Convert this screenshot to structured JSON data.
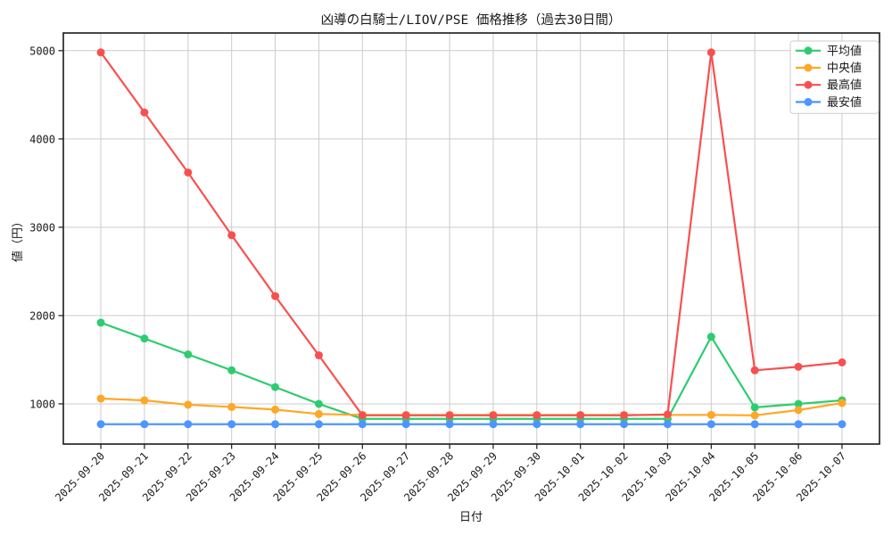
{
  "chart_data": {
    "type": "line",
    "title": "凶導の白騎士/LIOV/PSE 価格推移（過去30日間）",
    "xlabel": "日付",
    "ylabel": "値（円）",
    "x": [
      "2025-09-20",
      "2025-09-21",
      "2025-09-22",
      "2025-09-23",
      "2025-09-24",
      "2025-09-25",
      "2025-09-26",
      "2025-09-27",
      "2025-09-28",
      "2025-09-29",
      "2025-09-30",
      "2025-10-01",
      "2025-10-02",
      "2025-10-03",
      "2025-10-04",
      "2025-10-05",
      "2025-10-06",
      "2025-10-07"
    ],
    "yticks": [
      1000,
      2000,
      3000,
      4000,
      5000
    ],
    "ylim": [
      545,
      5200
    ],
    "grid": true,
    "legend_position": "upper right",
    "series": [
      {
        "name": "平均値",
        "key": "average",
        "color": "#2ecc71",
        "values": [
          1920,
          1740,
          1560,
          1380,
          1190,
          1000,
          830,
          830,
          830,
          830,
          830,
          830,
          830,
          830,
          1760,
          960,
          1000,
          1040
        ]
      },
      {
        "name": "中央値",
        "key": "median",
        "color": "#ffa726",
        "values": [
          1060,
          1040,
          990,
          965,
          935,
          885,
          875,
          875,
          875,
          875,
          875,
          875,
          875,
          875,
          875,
          870,
          930,
          1010
        ]
      },
      {
        "name": "最高値",
        "key": "max",
        "color": "#f85050",
        "values": [
          4980,
          4300,
          3620,
          2910,
          2220,
          1550,
          870,
          870,
          870,
          870,
          870,
          870,
          870,
          880,
          4980,
          1380,
          1420,
          1470
        ]
      },
      {
        "name": "最安値",
        "key": "min",
        "color": "#4d96ff",
        "values": [
          770,
          770,
          770,
          770,
          770,
          770,
          770,
          770,
          770,
          770,
          770,
          770,
          770,
          770,
          770,
          770,
          770,
          770
        ]
      }
    ],
    "colors": {
      "grid": "#cccccc",
      "spine": "#1a1a1a",
      "tick_text": "#1a1a1a",
      "legend_border": "#cccccc",
      "legend_bg": "#ffffff"
    }
  }
}
